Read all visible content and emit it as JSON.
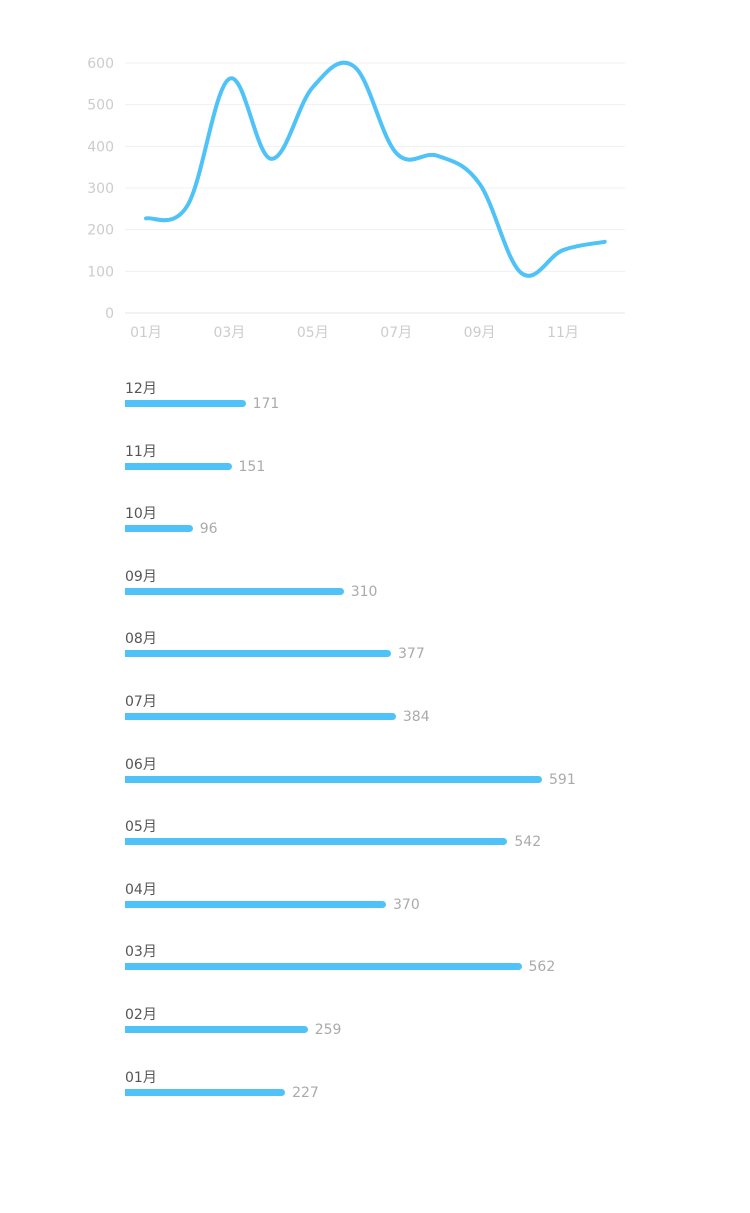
{
  "chart_data": [
    {
      "type": "line",
      "categories": [
        "01月",
        "02月",
        "03月",
        "04月",
        "05月",
        "06月",
        "07月",
        "08月",
        "09月",
        "10月",
        "11月",
        "12月"
      ],
      "x_tick_labels": [
        "01月",
        "03月",
        "05月",
        "07月",
        "09月",
        "11月"
      ],
      "series": [
        {
          "values": [
            227,
            259,
            562,
            370,
            542,
            591,
            384,
            377,
            310,
            96,
            151,
            171
          ]
        }
      ],
      "y_ticks": [
        0,
        100,
        200,
        300,
        400,
        500,
        600
      ],
      "ylim": [
        0,
        600
      ],
      "grid": true,
      "smooth": true,
      "line_color": "#4fc3f7",
      "grid_color": "#f0f0f0",
      "tick_color": "#cccccc"
    },
    {
      "type": "bar",
      "orientation": "horizontal",
      "categories": [
        "12月",
        "11月",
        "10月",
        "09月",
        "08月",
        "07月",
        "06月",
        "05月",
        "04月",
        "03月",
        "02月",
        "01月"
      ],
      "values": [
        171,
        151,
        96,
        310,
        377,
        384,
        591,
        542,
        370,
        562,
        259,
        227
      ],
      "bar_color": "#4fc3f7",
      "label_color": "#555555",
      "value_color": "#aaaaaa"
    }
  ]
}
